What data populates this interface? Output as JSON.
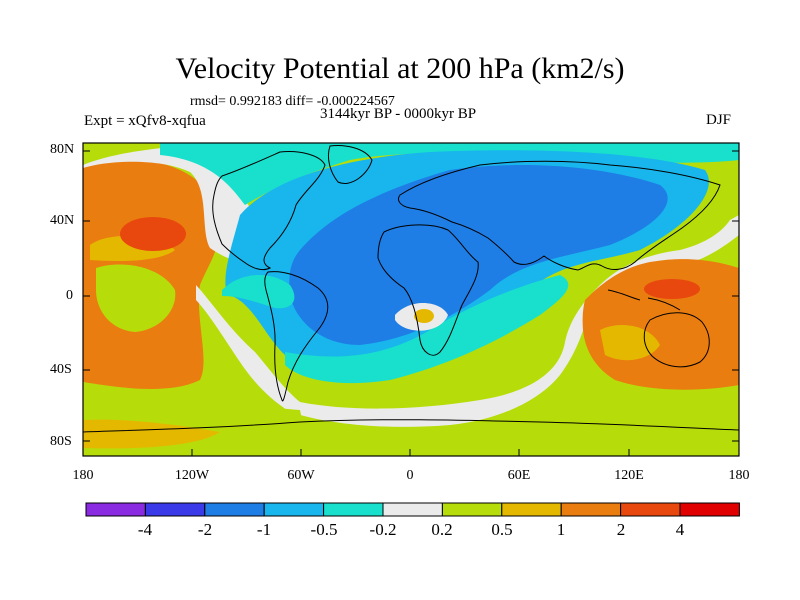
{
  "title": "Velocity Potential at 200 hPa (km2/s)",
  "stats_line": "rmsd= 0.992183 diff= -0.000224567",
  "period": "3144kyr BP - 0000kyr BP",
  "experiment": "Expt = xQfv8-xqfua",
  "season": "DJF",
  "map": {
    "projection": "cylindrical equidistant",
    "lat_ticks": [
      "80N",
      "40N",
      "0",
      "40S",
      "80S"
    ],
    "lon_ticks": [
      "180",
      "120W",
      "60W",
      "0",
      "60E",
      "120E",
      "180"
    ]
  },
  "colorbar": {
    "labels": [
      "-4",
      "-2",
      "-1",
      "-0.5",
      "-0.2",
      "0.2",
      "0.5",
      "1",
      "2",
      "4"
    ],
    "colors": [
      "#8a2be2",
      "#3a3ae8",
      "#1e7ee6",
      "#18b6ec",
      "#19e0cc",
      "#ebebeb",
      "#b6dd0a",
      "#e5b800",
      "#ea7d10",
      "#e8480e",
      "#e00000"
    ]
  }
}
